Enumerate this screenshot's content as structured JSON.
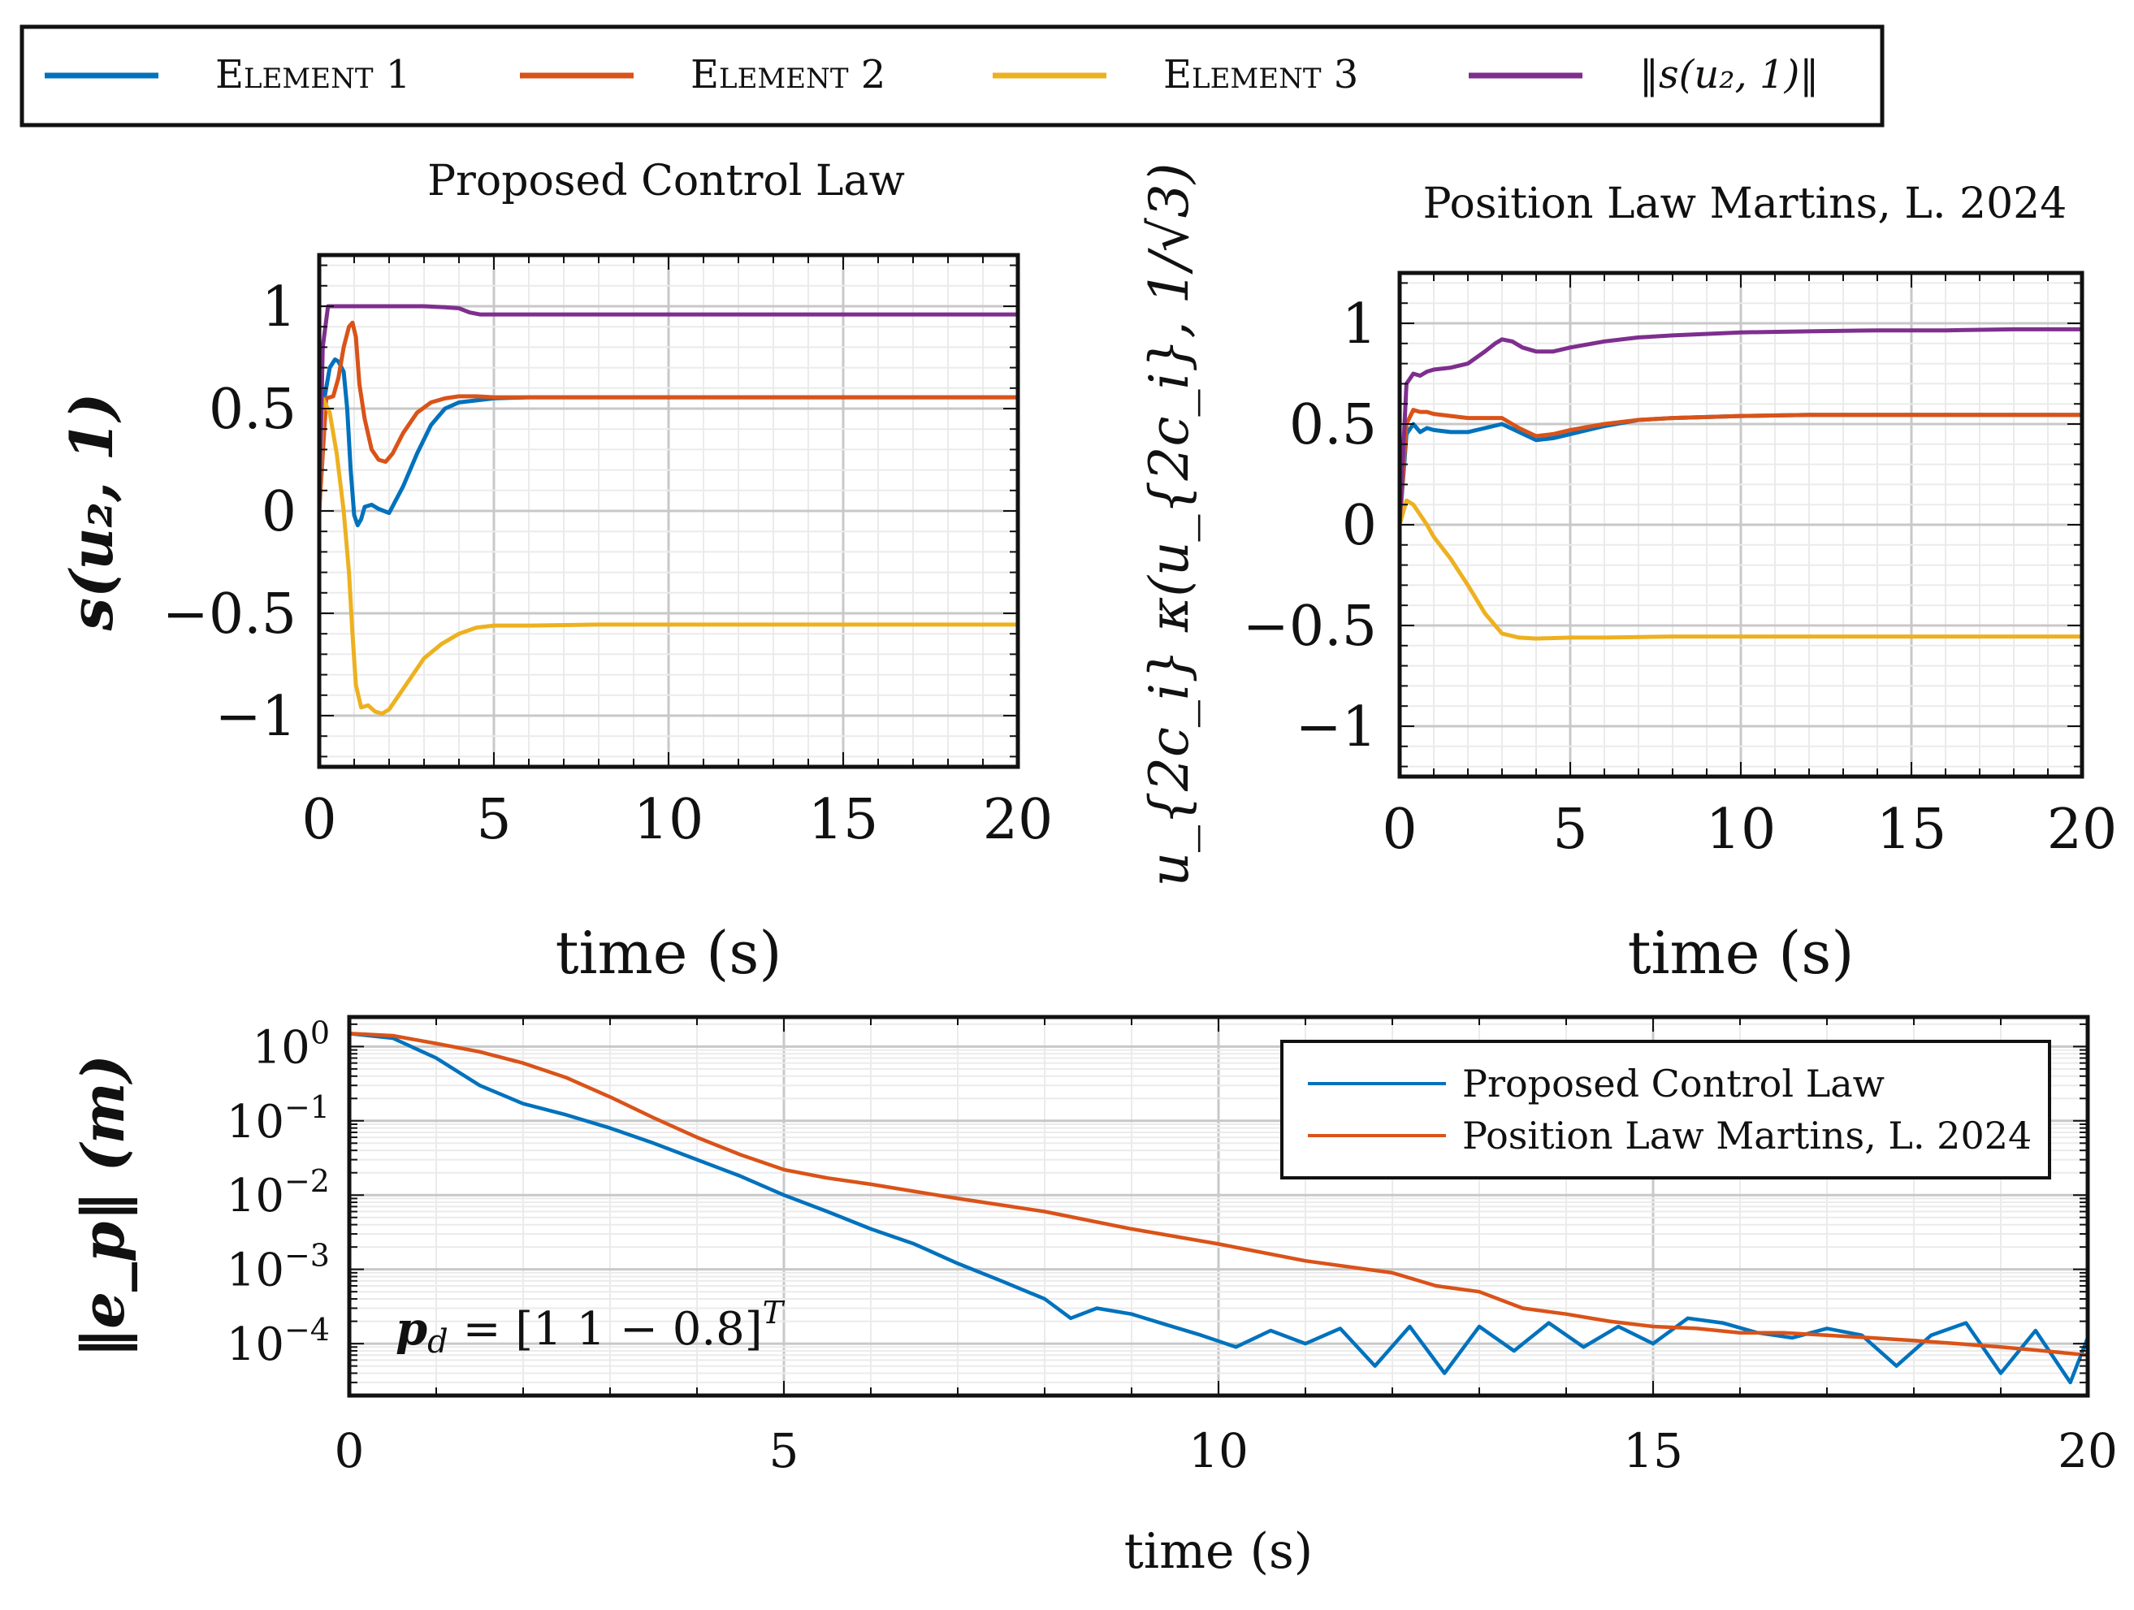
{
  "legend_top": {
    "entries": [
      {
        "label": "Element 1",
        "color": "#0072BD"
      },
      {
        "label": "Element 2",
        "color": "#D95319"
      },
      {
        "label": "Element 3",
        "color": "#EDB120"
      },
      {
        "label": "‖s(u₂, 1)‖",
        "color": "#7E2F8E"
      }
    ]
  },
  "chart_data": [
    {
      "type": "line",
      "title": "Proposed Control Law",
      "xlabel": "time (s)",
      "ylabel": "s(u₂, 1)",
      "xlim": [
        0,
        20
      ],
      "ylim": [
        -1.25,
        1.25
      ],
      "xticks": [
        0,
        5,
        10,
        15,
        20
      ],
      "xtick_labels": [
        "0",
        "5",
        "10",
        "15",
        "20"
      ],
      "yticks": [
        1,
        0.5,
        0,
        -0.5,
        -1
      ],
      "ytick_labels": [
        "1",
        "0.5",
        "0",
        "−0.5",
        "−1"
      ],
      "grid": true,
      "series": [
        {
          "name": "Element 1",
          "color": "#0072BD",
          "x": [
            0,
            0.15,
            0.3,
            0.45,
            0.55,
            0.7,
            0.8,
            0.9,
            1.0,
            1.1,
            1.2,
            1.3,
            1.5,
            1.7,
            2.0,
            2.4,
            2.8,
            3.2,
            3.6,
            4.0,
            4.5,
            5.0,
            6.0,
            8.0,
            10.0,
            12.0,
            14.0,
            16.0,
            18.0,
            20.0
          ],
          "y": [
            0.0,
            0.55,
            0.7,
            0.74,
            0.73,
            0.68,
            0.5,
            0.2,
            -0.02,
            -0.07,
            -0.04,
            0.02,
            0.03,
            0.01,
            -0.01,
            0.12,
            0.28,
            0.42,
            0.5,
            0.53,
            0.54,
            0.55,
            0.555,
            0.555,
            0.555,
            0.555,
            0.555,
            0.555,
            0.555,
            0.555
          ]
        },
        {
          "name": "Element 2",
          "color": "#D95319",
          "x": [
            0,
            0.2,
            0.4,
            0.55,
            0.7,
            0.85,
            0.95,
            1.05,
            1.15,
            1.3,
            1.5,
            1.7,
            1.9,
            2.1,
            2.4,
            2.8,
            3.2,
            3.6,
            4.0,
            4.5,
            5.0,
            6.0,
            8.0,
            10.0,
            12.0,
            14.0,
            16.0,
            18.0,
            20.0
          ],
          "y": [
            0.0,
            0.55,
            0.56,
            0.65,
            0.8,
            0.9,
            0.92,
            0.85,
            0.62,
            0.45,
            0.3,
            0.25,
            0.24,
            0.28,
            0.38,
            0.48,
            0.53,
            0.55,
            0.56,
            0.56,
            0.555,
            0.555,
            0.555,
            0.555,
            0.555,
            0.555,
            0.555,
            0.555,
            0.555
          ]
        },
        {
          "name": "Element 3",
          "color": "#EDB120",
          "x": [
            0,
            0.1,
            0.3,
            0.5,
            0.7,
            0.85,
            0.95,
            1.05,
            1.2,
            1.4,
            1.6,
            1.8,
            2.0,
            2.2,
            2.6,
            3.0,
            3.5,
            4.0,
            4.5,
            5.0,
            6.0,
            8.0,
            10.0,
            12.0,
            14.0,
            16.0,
            18.0,
            20.0
          ],
          "y": [
            0.0,
            0.55,
            0.48,
            0.28,
            0.0,
            -0.3,
            -0.6,
            -0.85,
            -0.96,
            -0.95,
            -0.98,
            -0.99,
            -0.97,
            -0.92,
            -0.82,
            -0.72,
            -0.65,
            -0.6,
            -0.57,
            -0.56,
            -0.56,
            -0.555,
            -0.555,
            -0.555,
            -0.555,
            -0.555,
            -0.555,
            -0.555
          ]
        },
        {
          "name": "‖s(u₂, 1)‖",
          "color": "#7E2F8E",
          "x": [
            0,
            0.1,
            0.25,
            0.5,
            1.0,
            2.0,
            3.0,
            3.6,
            4.0,
            4.3,
            4.6,
            5.0,
            8.0,
            12.0,
            16.0,
            20.0
          ],
          "y": [
            0.0,
            0.8,
            1.0,
            1.0,
            1.0,
            1.0,
            1.0,
            0.995,
            0.99,
            0.97,
            0.96,
            0.96,
            0.96,
            0.96,
            0.96,
            0.96
          ]
        }
      ]
    },
    {
      "type": "line",
      "title": "Position Law Martins, L. 2024",
      "xlabel": "time (s)",
      "ylabel": "u_{2c_i} κ(u_{2c_i}, 1/√3)",
      "xlim": [
        0,
        20
      ],
      "ylim": [
        -1.25,
        1.25
      ],
      "xticks": [
        0,
        5,
        10,
        15,
        20
      ],
      "xtick_labels": [
        "0",
        "5",
        "10",
        "15",
        "20"
      ],
      "yticks": [
        1,
        0.5,
        0,
        -0.5,
        -1
      ],
      "ytick_labels": [
        "1",
        "0.5",
        "0",
        "−0.5",
        "−1"
      ],
      "grid": true,
      "series": [
        {
          "name": "Element 1",
          "color": "#0072BD",
          "x": [
            0,
            0.2,
            0.4,
            0.6,
            0.8,
            1.0,
            1.5,
            2.0,
            2.5,
            3.0,
            3.5,
            4.0,
            4.5,
            5.0,
            6.0,
            7.0,
            8.0,
            10.0,
            12.0,
            14.0,
            16.0,
            18.0,
            20.0
          ],
          "y": [
            0.0,
            0.45,
            0.5,
            0.46,
            0.48,
            0.47,
            0.46,
            0.46,
            0.48,
            0.5,
            0.46,
            0.42,
            0.43,
            0.45,
            0.49,
            0.52,
            0.53,
            0.54,
            0.545,
            0.545,
            0.545,
            0.545,
            0.545
          ]
        },
        {
          "name": "Element 2",
          "color": "#D95319",
          "x": [
            0,
            0.2,
            0.4,
            0.6,
            0.8,
            1.0,
            1.5,
            2.0,
            2.5,
            3.0,
            3.5,
            4.0,
            4.5,
            5.0,
            6.0,
            7.0,
            8.0,
            10.0,
            12.0,
            14.0,
            16.0,
            18.0,
            20.0
          ],
          "y": [
            0.0,
            0.5,
            0.57,
            0.56,
            0.56,
            0.55,
            0.54,
            0.53,
            0.53,
            0.53,
            0.48,
            0.44,
            0.45,
            0.47,
            0.5,
            0.52,
            0.53,
            0.54,
            0.545,
            0.545,
            0.545,
            0.545,
            0.545
          ]
        },
        {
          "name": "Element 3",
          "color": "#EDB120",
          "x": [
            0,
            0.2,
            0.4,
            0.6,
            0.8,
            1.0,
            1.5,
            2.0,
            2.5,
            2.8,
            3.0,
            3.5,
            4.0,
            5.0,
            6.0,
            8.0,
            10.0,
            12.0,
            14.0,
            16.0,
            18.0,
            20.0
          ],
          "y": [
            0.0,
            0.12,
            0.1,
            0.05,
            0.0,
            -0.06,
            -0.17,
            -0.3,
            -0.44,
            -0.5,
            -0.54,
            -0.56,
            -0.565,
            -0.56,
            -0.56,
            -0.555,
            -0.555,
            -0.555,
            -0.555,
            -0.555,
            -0.555,
            -0.555
          ]
        },
        {
          "name": "‖s(u₂, 1)‖",
          "color": "#7E2F8E",
          "x": [
            0,
            0.2,
            0.4,
            0.6,
            0.8,
            1.0,
            1.5,
            2.0,
            2.5,
            2.8,
            3.0,
            3.3,
            3.6,
            4.0,
            4.5,
            5.0,
            6.0,
            7.0,
            8.0,
            10.0,
            12.0,
            14.0,
            16.0,
            18.0,
            20.0
          ],
          "y": [
            0.0,
            0.7,
            0.75,
            0.74,
            0.76,
            0.77,
            0.78,
            0.8,
            0.86,
            0.9,
            0.92,
            0.91,
            0.88,
            0.86,
            0.86,
            0.88,
            0.91,
            0.93,
            0.94,
            0.955,
            0.96,
            0.965,
            0.965,
            0.97,
            0.97
          ]
        }
      ]
    },
    {
      "type": "line",
      "yscale": "log",
      "title": "",
      "xlabel": "time (s)",
      "ylabel": "‖e_p‖ (m)",
      "xlim": [
        0,
        20
      ],
      "ylim": [
        2e-05,
        2.5
      ],
      "xticks": [
        0,
        5,
        10,
        15,
        20
      ],
      "xtick_labels": [
        "0",
        "5",
        "10",
        "15",
        "20"
      ],
      "yticks": [
        1,
        0.1,
        0.01,
        0.001,
        0.0001
      ],
      "ytick_base": "10",
      "ytick_exponents": [
        "0",
        "−1",
        "−2",
        "−3",
        "−4"
      ],
      "grid": true,
      "legend_position": "top-right",
      "annotation": {
        "text_lhs": "p",
        "text_sub": "d",
        "text_rhs": " = [1  1  − 0.8]",
        "text_sup": "T"
      },
      "series": [
        {
          "name": "Proposed Control Law",
          "color": "#0072BD",
          "x": [
            0,
            0.5,
            1.0,
            1.5,
            2.0,
            2.5,
            3.0,
            3.5,
            4.0,
            4.5,
            5.0,
            5.5,
            6.0,
            6.5,
            7.0,
            7.5,
            8.0,
            8.3,
            8.6,
            9.0,
            9.4,
            9.8,
            10.2,
            10.6,
            11.0,
            11.4,
            11.8,
            12.2,
            12.6,
            13.0,
            13.4,
            13.8,
            14.2,
            14.6,
            15.0,
            15.4,
            15.8,
            16.2,
            16.6,
            17.0,
            17.4,
            17.8,
            18.2,
            18.6,
            19.0,
            19.4,
            19.8,
            20.0
          ],
          "y": [
            1.5,
            1.3,
            0.7,
            0.3,
            0.17,
            0.12,
            0.08,
            0.05,
            0.03,
            0.018,
            0.01,
            0.006,
            0.0035,
            0.0022,
            0.0012,
            0.0007,
            0.0004,
            0.00022,
            0.0003,
            0.00025,
            0.00018,
            0.00013,
            9e-05,
            0.00015,
            0.0001,
            0.00016,
            5e-05,
            0.00017,
            4e-05,
            0.00017,
            8e-05,
            0.00019,
            9e-05,
            0.00017,
            0.0001,
            0.00022,
            0.00019,
            0.00014,
            0.00012,
            0.00016,
            0.00013,
            5e-05,
            0.00013,
            0.00019,
            4e-05,
            0.00015,
            3e-05,
            0.00012
          ]
        },
        {
          "name": "Position Law Martins, L. 2024",
          "color": "#D95319",
          "x": [
            0,
            0.5,
            1.0,
            1.5,
            2.0,
            2.5,
            3.0,
            3.5,
            4.0,
            4.5,
            5.0,
            5.5,
            6.0,
            7.0,
            8.0,
            9.0,
            10.0,
            11.0,
            12.0,
            12.5,
            13.0,
            13.5,
            14.0,
            14.5,
            15.0,
            15.5,
            16.0,
            16.5,
            17.0,
            17.5,
            18.0,
            18.5,
            19.0,
            19.5,
            20.0
          ],
          "y": [
            1.5,
            1.4,
            1.1,
            0.85,
            0.6,
            0.38,
            0.21,
            0.11,
            0.06,
            0.035,
            0.022,
            0.017,
            0.014,
            0.009,
            0.006,
            0.0035,
            0.0022,
            0.0013,
            0.0009,
            0.0006,
            0.0005,
            0.0003,
            0.00025,
            0.0002,
            0.00017,
            0.00016,
            0.00014,
            0.00014,
            0.00013,
            0.00012,
            0.00011,
            0.0001,
            9e-05,
            8e-05,
            7e-05
          ]
        }
      ]
    }
  ]
}
